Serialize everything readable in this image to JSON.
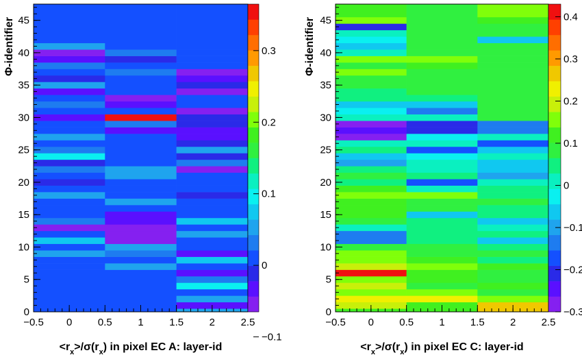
{
  "chart_data": [
    {
      "type": "heatmap",
      "xlabel": "<r_x>/σ(r_x) in pixel EC A: layer-id",
      "ylabel": "Φ-identifier",
      "x_ticks": [
        "−0.5",
        "0",
        "0.5",
        "1",
        "1.5",
        "2",
        "2.5"
      ],
      "y_ticks": [
        "0",
        "5",
        "10",
        "15",
        "20",
        "25",
        "30",
        "35",
        "40",
        "45"
      ],
      "colorbar_ticks": [
        "−0.1",
        "0",
        "0.1",
        "0.2",
        "0.3"
      ],
      "xlim": [
        -0.5,
        2.5
      ],
      "ylim": [
        0,
        47.5
      ],
      "zlim": [
        -0.065,
        0.365
      ],
      "x_bins": [
        0,
        1,
        2
      ],
      "y_bins": 48,
      "values": [
        [
          0.0,
          0.0,
          0.06
        ],
        [
          0.0,
          0.0,
          -0.03
        ],
        [
          0.0,
          0.0,
          0.05
        ],
        [
          0.0,
          0.0,
          0.01
        ],
        [
          0.0,
          0.0,
          0.1
        ],
        [
          0.0,
          0.0,
          0.03
        ],
        [
          0.0,
          0.0,
          -0.04
        ],
        [
          0.0,
          0.06,
          0.0
        ],
        [
          0.02,
          0.0,
          0.07
        ],
        [
          0.05,
          0.03,
          -0.03
        ],
        [
          0.0,
          0.06,
          0.01
        ],
        [
          0.08,
          -0.06,
          0.0
        ],
        [
          0.0,
          -0.06,
          0.05
        ],
        [
          -0.05,
          -0.06,
          0.01
        ],
        [
          0.03,
          -0.03,
          0.07
        ],
        [
          0.0,
          -0.04,
          0.0
        ],
        [
          0.02,
          0.0,
          0.0
        ],
        [
          0.0,
          0.05,
          0.0
        ],
        [
          0.06,
          0.02,
          -0.02
        ],
        [
          0.02,
          0.0,
          0.0
        ],
        [
          -0.02,
          0.0,
          0.01
        ],
        [
          0.02,
          0.06,
          0.02
        ],
        [
          0.03,
          0.05,
          -0.05
        ],
        [
          -0.02,
          0.02,
          0.04
        ],
        [
          0.1,
          0.02,
          -0.02
        ],
        [
          0.04,
          0.02,
          0.05
        ],
        [
          0.0,
          0.02,
          -0.01
        ],
        [
          0.06,
          0.0,
          -0.03
        ],
        [
          0.02,
          -0.03,
          -0.03
        ],
        [
          0.0,
          0.03,
          -0.01
        ],
        [
          -0.04,
          0.36,
          -0.02
        ],
        [
          0.0,
          0.0,
          -0.05
        ],
        [
          0.04,
          -0.03,
          0.0
        ],
        [
          0.0,
          -0.05,
          0.0
        ],
        [
          -0.04,
          0.02,
          -0.05
        ],
        [
          0.05,
          0.0,
          -0.02
        ],
        [
          -0.02,
          0.0,
          -0.03
        ],
        [
          0.0,
          0.03,
          -0.06
        ],
        [
          0.03,
          0.01,
          0.0
        ],
        [
          -0.03,
          -0.02,
          0.0
        ],
        [
          -0.06,
          0.04,
          0.0
        ],
        [
          0.06,
          0.0,
          0.0
        ],
        [
          0.0,
          0.0,
          0.0
        ],
        [
          0.0,
          0.0,
          0.0
        ],
        [
          0.0,
          0.0,
          0.0
        ],
        [
          0.0,
          0.0,
          0.0
        ],
        [
          0.0,
          0.0,
          0.0
        ],
        [
          0.0,
          0.0,
          0.0
        ]
      ]
    },
    {
      "type": "heatmap",
      "xlabel": "<r_x>/σ(r_x) in pixel EC C: layer-id",
      "ylabel": "Φ-identifier",
      "x_ticks": [
        "−0.5",
        "0",
        "0.5",
        "1",
        "1.5",
        "2",
        "2.5"
      ],
      "y_ticks": [
        "0",
        "5",
        "10",
        "15",
        "20",
        "25",
        "30",
        "35",
        "40",
        "45"
      ],
      "colorbar_ticks": [
        "−0.3",
        "−0.2",
        "−0.1",
        "0",
        "0.1",
        "0.2",
        "0.3",
        "0.4"
      ],
      "xlim": [
        -0.5,
        2.5
      ],
      "ylim": [
        0,
        47.5
      ],
      "zlim": [
        -0.3,
        0.43
      ],
      "x_bins": [
        0,
        1,
        2
      ],
      "y_bins": 48,
      "values": [
        [
          0.12,
          0.12,
          0.28
        ],
        [
          0.18,
          0.12,
          0.26
        ],
        [
          0.22,
          0.22,
          0.16
        ],
        [
          0.17,
          0.14,
          0.1
        ],
        [
          0.2,
          0.1,
          0.13
        ],
        [
          0.14,
          0.13,
          0.1
        ],
        [
          0.42,
          0.12,
          0.1
        ],
        [
          0.18,
          0.15,
          0.12
        ],
        [
          0.14,
          0.12,
          0.06
        ],
        [
          0.16,
          0.1,
          0.08
        ],
        [
          0.08,
          0.08,
          0.05
        ],
        [
          -0.15,
          0.06,
          -0.07
        ],
        [
          -0.15,
          0.03,
          0.05
        ],
        [
          0.0,
          0.06,
          0.0
        ],
        [
          0.1,
          0.06,
          -0.08
        ],
        [
          0.12,
          -0.06,
          0.03
        ],
        [
          0.12,
          0.1,
          0.06
        ],
        [
          0.12,
          0.08,
          0.1
        ],
        [
          0.14,
          0.14,
          0.05
        ],
        [
          0.12,
          0.0,
          0.06
        ],
        [
          0.05,
          -0.17,
          0.0
        ],
        [
          0.08,
          0.04,
          -0.1
        ],
        [
          0.03,
          0.0,
          -0.05
        ],
        [
          -0.1,
          0.02,
          -0.08
        ],
        [
          -0.05,
          -0.03,
          0.0
        ],
        [
          0.03,
          -0.17,
          -0.07
        ],
        [
          0.0,
          0.0,
          -0.17
        ],
        [
          -0.28,
          -0.02,
          0.0
        ],
        [
          -0.25,
          -0.2,
          -0.14
        ],
        [
          -0.27,
          -0.2,
          -0.14
        ],
        [
          0.02,
          0.0,
          0.1
        ],
        [
          -0.03,
          -0.12,
          0.1
        ],
        [
          -0.05,
          -0.05,
          0.1
        ],
        [
          0.04,
          0.03,
          0.1
        ],
        [
          0.06,
          0.08,
          0.1
        ],
        [
          0.08,
          0.08,
          0.1
        ],
        [
          0.1,
          0.1,
          0.1
        ],
        [
          0.15,
          0.1,
          0.1
        ],
        [
          0.08,
          0.12,
          0.1
        ],
        [
          0.14,
          0.15,
          0.1
        ],
        [
          0.0,
          0.1,
          0.1
        ],
        [
          -0.05,
          0.1,
          0.1
        ],
        [
          -0.03,
          0.1,
          -0.05
        ],
        [
          0.0,
          0.1,
          0.1
        ],
        [
          -0.2,
          0.1,
          0.1
        ],
        [
          0.14,
          0.1,
          0.12
        ],
        [
          0.12,
          0.1,
          0.14
        ],
        [
          0.12,
          0.1,
          0.14
        ]
      ]
    }
  ]
}
